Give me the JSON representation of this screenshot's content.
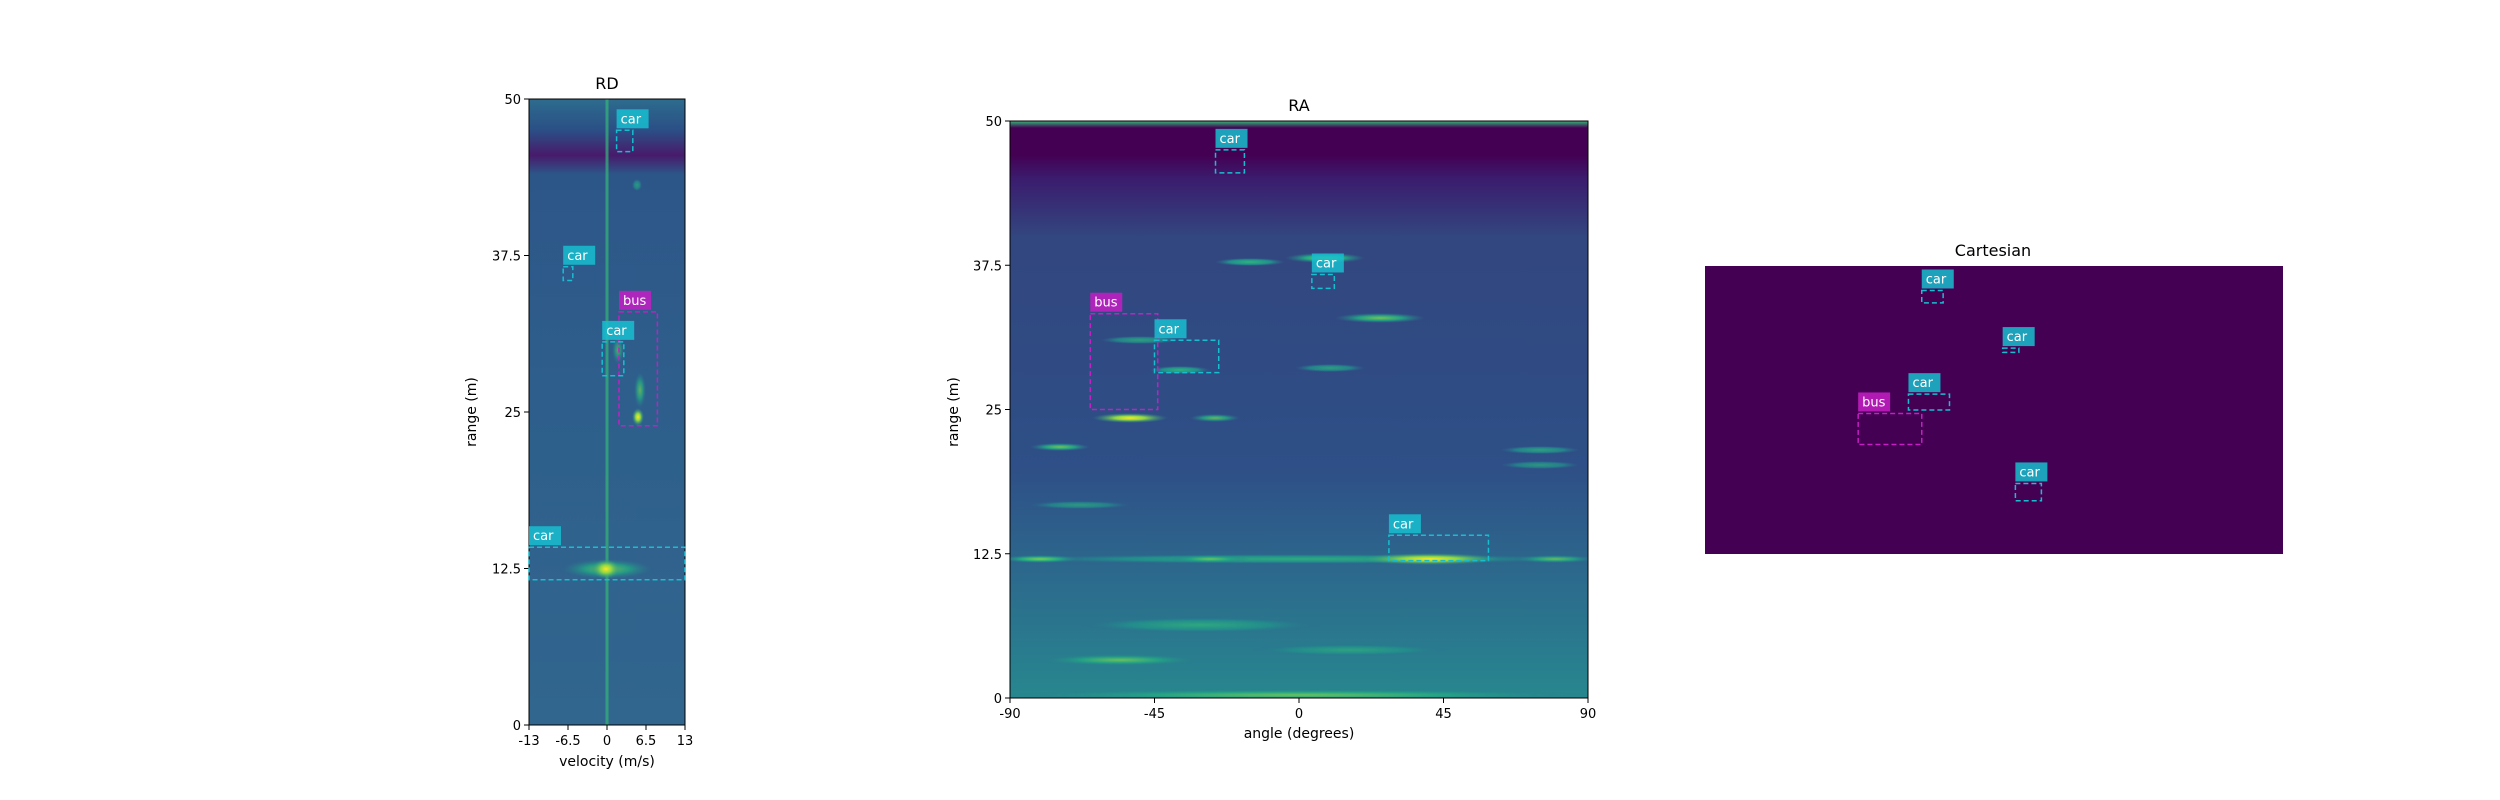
{
  "chart_data": [
    {
      "type": "heatmap",
      "title": "RD",
      "xlabel": "velocity (m/s)",
      "ylabel": "range (m)",
      "xlim": [
        -13,
        13
      ],
      "ylim": [
        0,
        50
      ],
      "xticks": [
        -13,
        -6.5,
        0,
        6.5,
        13
      ],
      "xtick_labels": [
        "-13",
        "-6.5",
        "0",
        "6.5",
        "13"
      ],
      "yticks": [
        0,
        12.5,
        25,
        37.5,
        50
      ],
      "ytick_labels": [
        "0",
        "12.5",
        "25",
        "37.5",
        "50"
      ],
      "colormap": "viridis",
      "boxes": [
        {
          "label": "car",
          "x": [
            1.6,
            4.3
          ],
          "y": [
            45.8,
            47.5
          ],
          "color": "#17becf"
        },
        {
          "label": "car",
          "x": [
            -7.3,
            -5.7
          ],
          "y": [
            35.5,
            36.6
          ],
          "color": "#17becf"
        },
        {
          "label": "bus",
          "x": [
            2.0,
            8.4
          ],
          "y": [
            23.9,
            33.0
          ],
          "color": "#c41ec4"
        },
        {
          "label": "car",
          "x": [
            -0.8,
            2.8
          ],
          "y": [
            27.9,
            30.6
          ],
          "color": "#17becf"
        },
        {
          "label": "car",
          "x": [
            -13,
            13
          ],
          "y": [
            11.6,
            14.2
          ],
          "color": "#17becf"
        }
      ]
    },
    {
      "type": "heatmap",
      "title": "RA",
      "xlabel": "angle (degrees)",
      "ylabel": "range (m)",
      "xlim": [
        -90,
        90
      ],
      "ylim": [
        0,
        50
      ],
      "xticks": [
        -90,
        -45,
        0,
        45,
        90
      ],
      "xtick_labels": [
        "-90",
        "-45",
        "0",
        "45",
        "90"
      ],
      "yticks": [
        0,
        12.5,
        25,
        37.5,
        50
      ],
      "ytick_labels": [
        "0",
        "12.5",
        "25",
        "37.5",
        "50"
      ],
      "colormap": "viridis",
      "boxes": [
        {
          "label": "car",
          "x": [
            -26,
            -17
          ],
          "y": [
            45.5,
            47.5
          ],
          "color": "#17becf"
        },
        {
          "label": "car",
          "x": [
            4,
            11
          ],
          "y": [
            35.5,
            36.7
          ],
          "color": "#17becf"
        },
        {
          "label": "bus",
          "x": [
            -65,
            -44
          ],
          "y": [
            25,
            33.3
          ],
          "color": "#c41ec4"
        },
        {
          "label": "car",
          "x": [
            -45,
            -25
          ],
          "y": [
            28.2,
            31.0
          ],
          "color": "#17becf"
        },
        {
          "label": "car",
          "x": [
            28,
            59
          ],
          "y": [
            11.9,
            14.1
          ],
          "color": "#17becf"
        }
      ]
    },
    {
      "type": "heatmap",
      "title": "Cartesian",
      "xlabel": "",
      "ylabel": "",
      "background_color": "#440154",
      "boxes": [
        {
          "label": "car",
          "x": [
            0.375,
            0.412
          ],
          "y": [
            0.085,
            0.128
          ],
          "color": "#17becf"
        },
        {
          "label": "car",
          "x": [
            0.515,
            0.543
          ],
          "y": [
            0.285,
            0.3
          ],
          "color": "#17becf"
        },
        {
          "label": "car",
          "x": [
            0.352,
            0.423
          ],
          "y": [
            0.445,
            0.5
          ],
          "color": "#17becf"
        },
        {
          "label": "bus",
          "x": [
            0.265,
            0.375
          ],
          "y": [
            0.512,
            0.62
          ],
          "color": "#c41ec4"
        },
        {
          "label": "car",
          "x": [
            0.537,
            0.582
          ],
          "y": [
            0.755,
            0.815
          ],
          "color": "#17becf"
        }
      ]
    }
  ]
}
